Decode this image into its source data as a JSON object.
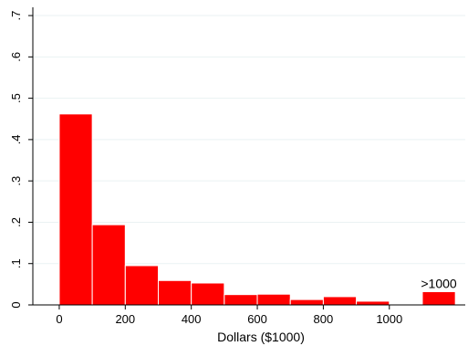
{
  "chart_data": {
    "type": "bar",
    "subtype": "histogram",
    "bin_width": 100,
    "bins": [
      {
        "x0": 0,
        "x1": 100,
        "value": 0.462
      },
      {
        "x0": 100,
        "x1": 200,
        "value": 0.194
      },
      {
        "x0": 200,
        "x1": 300,
        "value": 0.095
      },
      {
        "x0": 300,
        "x1": 400,
        "value": 0.059
      },
      {
        "x0": 400,
        "x1": 500,
        "value": 0.053
      },
      {
        "x0": 500,
        "x1": 600,
        "value": 0.025
      },
      {
        "x0": 600,
        "x1": 700,
        "value": 0.026
      },
      {
        "x0": 700,
        "x1": 800,
        "value": 0.013
      },
      {
        "x0": 800,
        "x1": 900,
        "value": 0.02
      },
      {
        "x0": 900,
        "x1": 1000,
        "value": 0.009
      },
      {
        "x0": 1100,
        "x1": 1200,
        "value": 0.032
      }
    ],
    "xlabel": "Dollars ($1000)",
    "ylabel": "",
    "xlim": [
      -80,
      1230
    ],
    "ylim": [
      0,
      0.72
    ],
    "xticks": [
      0,
      200,
      400,
      600,
      800,
      1000
    ],
    "xtick_labels": [
      "0",
      "200",
      "400",
      "600",
      "800",
      "1000"
    ],
    "yticks": [
      0,
      0.1,
      0.2,
      0.3,
      0.4,
      0.5,
      0.6,
      0.7
    ],
    "ytick_labels": [
      "0",
      ".1",
      ".2",
      ".3",
      ".4",
      ".5",
      ".6",
      ".7"
    ],
    "annotations": [
      {
        "text": ">1000",
        "x": 1150,
        "y": 0.032
      }
    ],
    "bar_color": "#ff0000",
    "bar_edge_color": "#ffffff",
    "grid": true,
    "grid_color": "#eaf2f3"
  }
}
